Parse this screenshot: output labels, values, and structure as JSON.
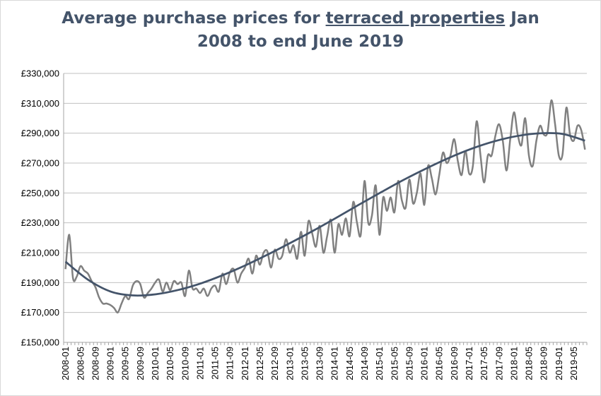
{
  "title": {
    "line1_pre": "Average purchase prices for ",
    "line1_underlined": "terraced properties",
    "line1_post": " Jan",
    "line2": "2008 to end June 2019"
  },
  "colors": {
    "title": "#44546a",
    "actual_series": "#808080",
    "trend_series": "#44546a",
    "grid": "#c0c0c0"
  },
  "chart_data": {
    "type": "line",
    "title": "Average purchase prices for terraced properties Jan 2008 to end June 2019",
    "xlabel": "",
    "ylabel": "",
    "ylim": [
      150000,
      330000
    ],
    "y_ticks": [
      "£150,000",
      "£170,000",
      "£190,000",
      "£210,000",
      "£230,000",
      "£250,000",
      "£270,000",
      "£290,000",
      "£310,000",
      "£330,000"
    ],
    "x_tick_labels": [
      "2008-01",
      "2008-05",
      "2008-09",
      "2009-01",
      "2009-05",
      "2009-09",
      "2010-01",
      "2010-05",
      "2010-09",
      "2011-01",
      "2011-05",
      "2011-09",
      "2012-01",
      "2012-05",
      "2012-09",
      "2013-01",
      "2013-05",
      "2013-09",
      "2014-01",
      "2014-05",
      "2014-09",
      "2015-01",
      "2015-05",
      "2015-09",
      "2016-01",
      "2016-05",
      "2016-09",
      "2017-01",
      "2017-05",
      "2017-09",
      "2018-01",
      "2018-05",
      "2018-09",
      "2019-01",
      "2019-05"
    ],
    "grid": true,
    "legend": "none",
    "x_start": "2008-01",
    "series": [
      {
        "values": [
          199000,
          222000,
          193000,
          194000,
          201000,
          198000,
          196000,
          191000,
          187000,
          180000,
          176000,
          176000,
          175000,
          173000,
          170000,
          176000,
          181000,
          179000,
          188000,
          191000,
          189000,
          180000,
          183000,
          186000,
          190000,
          192000,
          184000,
          190000,
          185000,
          191000,
          189000,
          190000,
          181000,
          198000,
          186000,
          186000,
          183000,
          186000,
          181000,
          186000,
          188000,
          184000,
          196000,
          189000,
          197000,
          199000,
          190000,
          196000,
          200000,
          206000,
          196000,
          208000,
          202000,
          210000,
          211000,
          200000,
          212000,
          206000,
          208000,
          219000,
          210000,
          215000,
          206000,
          224000,
          208000,
          231000,
          223000,
          214000,
          228000,
          210000,
          221000,
          232000,
          210000,
          229000,
          222000,
          233000,
          221000,
          244000,
          230000,
          222000,
          258000,
          230000,
          235000,
          255000,
          222000,
          247000,
          238000,
          247000,
          237000,
          258000,
          245000,
          240000,
          259000,
          243000,
          250000,
          263000,
          242000,
          268000,
          260000,
          249000,
          262000,
          277000,
          270000,
          275000,
          286000,
          271000,
          262000,
          278000,
          263000,
          268000,
          298000,
          276000,
          257000,
          275000,
          275000,
          288000,
          296000,
          285000,
          265000,
          286000,
          304000,
          289000,
          282000,
          300000,
          275000,
          268000,
          285000,
          295000,
          289000,
          291000,
          312000,
          296000,
          275000,
          276000,
          307000,
          289000,
          285000,
          295000,
          292000,
          279000
        ]
      },
      {
        "values": [
          204000,
          191900,
          184000,
          181400,
          182200,
          185100,
          189500,
          195200,
          201800,
          209100,
          216900,
          225000,
          233500,
          242200,
          250700,
          259000,
          266600,
          273600,
          279700,
          284600,
          288100,
          289900,
          289500,
          285000
        ]
      }
    ]
  }
}
